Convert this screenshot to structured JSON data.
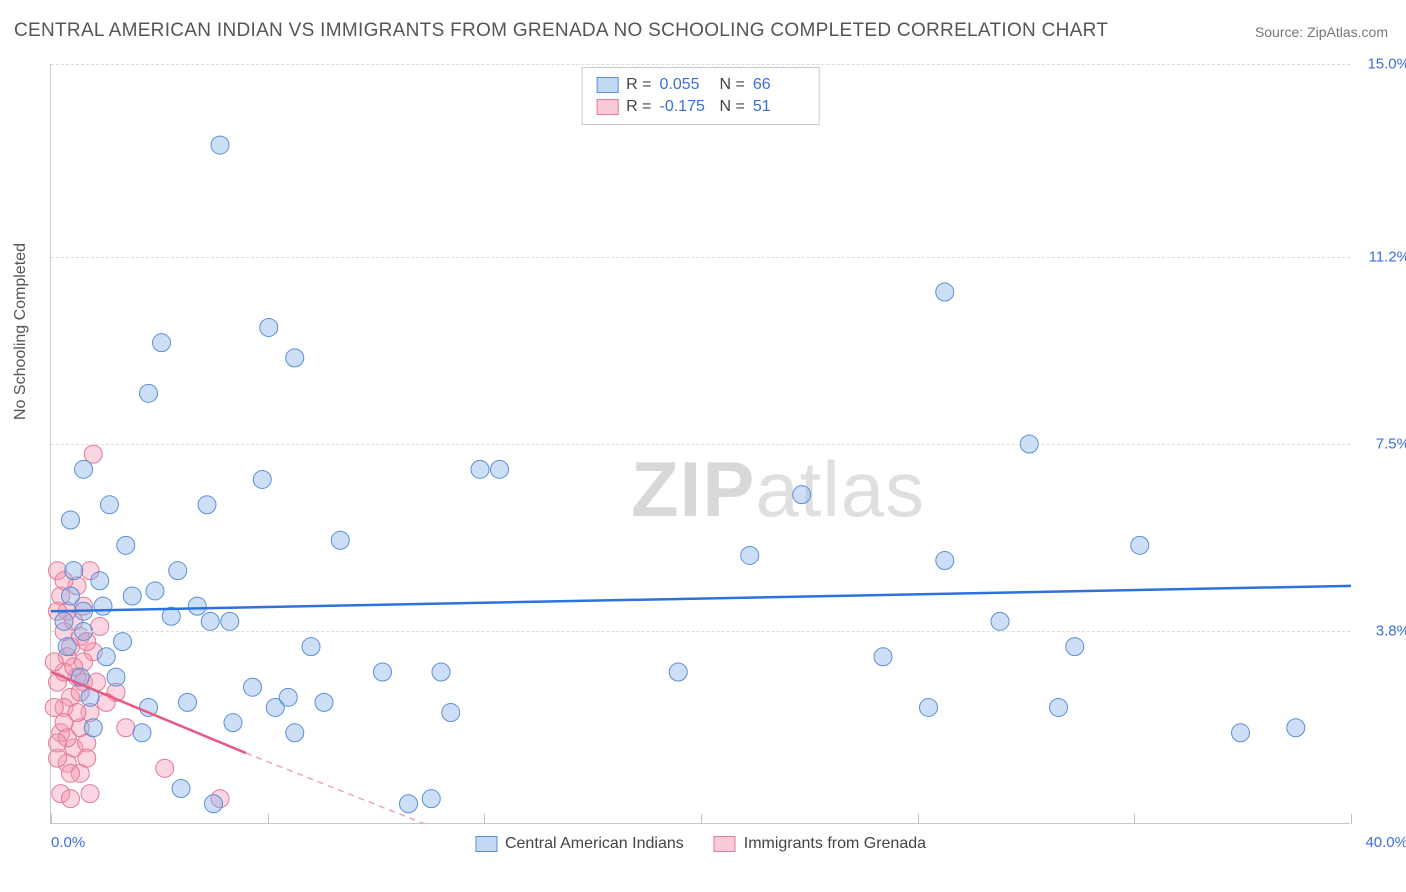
{
  "title": "CENTRAL AMERICAN INDIAN VS IMMIGRANTS FROM GRENADA NO SCHOOLING COMPLETED CORRELATION CHART",
  "source": "Source: ZipAtlas.com",
  "ylabel": "No Schooling Completed",
  "watermark_a": "ZIP",
  "watermark_b": "atlas",
  "chart": {
    "type": "scatter",
    "xlim": [
      0,
      40
    ],
    "ylim": [
      0,
      15
    ],
    "xtick_min_label": "0.0%",
    "xtick_max_label": "40.0%",
    "yticks": [
      {
        "v": 3.8,
        "label": "3.8%"
      },
      {
        "v": 7.5,
        "label": "7.5%"
      },
      {
        "v": 11.2,
        "label": "11.2%"
      },
      {
        "v": 15.0,
        "label": "15.0%"
      }
    ],
    "xgrid": [
      0,
      6.67,
      13.33,
      20,
      26.67,
      33.33,
      40
    ],
    "marker_radius": 9,
    "background_color": "#ffffff",
    "grid_color": "#dcdcdc",
    "axis_color": "#c9c9c9"
  },
  "series": {
    "blue": {
      "label": "Central American Indians",
      "R": "0.055",
      "N": "66",
      "fill": "rgba(130,175,235,0.40)",
      "stroke": "#5a8fd6",
      "trend_color": "#2d72d9",
      "trend": {
        "y_at_x0": 4.2,
        "y_at_xmax": 4.7
      },
      "points": [
        [
          5.2,
          13.4
        ],
        [
          27.5,
          10.5
        ],
        [
          30.1,
          7.5
        ],
        [
          13.2,
          7.0
        ],
        [
          23.1,
          6.5
        ],
        [
          6.7,
          9.8
        ],
        [
          3.4,
          9.5
        ],
        [
          6.5,
          6.8
        ],
        [
          7.5,
          9.2
        ],
        [
          4.8,
          6.3
        ],
        [
          2.3,
          5.5
        ],
        [
          3.9,
          5.0
        ],
        [
          1.0,
          4.2
        ],
        [
          0.6,
          4.5
        ],
        [
          2.5,
          4.5
        ],
        [
          3.7,
          4.1
        ],
        [
          4.9,
          4.0
        ],
        [
          29.2,
          4.0
        ],
        [
          31.5,
          3.5
        ],
        [
          33.5,
          5.5
        ],
        [
          36.6,
          1.8
        ],
        [
          38.3,
          1.9
        ],
        [
          31.0,
          2.3
        ],
        [
          27.0,
          2.3
        ],
        [
          27.5,
          5.2
        ],
        [
          25.6,
          3.3
        ],
        [
          21.5,
          5.3
        ],
        [
          19.3,
          3.0
        ],
        [
          6.2,
          2.7
        ],
        [
          6.9,
          2.3
        ],
        [
          5.6,
          2.0
        ],
        [
          5.0,
          0.4
        ],
        [
          7.5,
          1.8
        ],
        [
          7.3,
          2.5
        ],
        [
          8.4,
          2.4
        ],
        [
          12.3,
          2.2
        ],
        [
          11.7,
          0.5
        ],
        [
          12.0,
          3.0
        ],
        [
          10.2,
          3.0
        ],
        [
          8.9,
          5.6
        ],
        [
          1.0,
          3.8
        ],
        [
          1.7,
          3.3
        ],
        [
          1.2,
          2.5
        ],
        [
          2.0,
          2.9
        ],
        [
          2.8,
          1.8
        ],
        [
          4.2,
          2.4
        ],
        [
          0.7,
          5.0
        ],
        [
          1.5,
          4.8
        ],
        [
          0.5,
          3.5
        ],
        [
          0.9,
          2.9
        ],
        [
          1.3,
          1.9
        ],
        [
          3.0,
          2.3
        ],
        [
          4.5,
          4.3
        ],
        [
          5.5,
          4.0
        ],
        [
          13.8,
          7.0
        ],
        [
          3.0,
          8.5
        ],
        [
          1.8,
          6.3
        ],
        [
          0.6,
          6.0
        ],
        [
          1.0,
          7.0
        ],
        [
          11.0,
          0.4
        ],
        [
          8.0,
          3.5
        ],
        [
          4.0,
          0.7
        ],
        [
          3.2,
          4.6
        ],
        [
          2.2,
          3.6
        ],
        [
          1.6,
          4.3
        ],
        [
          0.4,
          4.0
        ]
      ]
    },
    "pink": {
      "label": "Immigrants from Grenada",
      "R": "-0.175",
      "N": "51",
      "fill": "rgba(245,150,175,0.40)",
      "stroke": "#e07a99",
      "trend_color": "#e85a85",
      "trend": {
        "y_at_x0": 3.0,
        "slope_to_x": 6.0,
        "y_at_limit": 1.4,
        "extend_to_zero_at_x": 11.5
      },
      "points": [
        [
          1.3,
          7.3
        ],
        [
          0.2,
          5.0
        ],
        [
          0.4,
          3.8
        ],
        [
          0.3,
          4.5
        ],
        [
          0.7,
          4.0
        ],
        [
          0.5,
          3.3
        ],
        [
          0.8,
          2.9
        ],
        [
          0.2,
          2.8
        ],
        [
          0.6,
          2.5
        ],
        [
          0.4,
          2.3
        ],
        [
          1.0,
          2.8
        ],
        [
          1.2,
          2.2
        ],
        [
          0.9,
          1.9
        ],
        [
          0.3,
          1.8
        ],
        [
          0.7,
          1.5
        ],
        [
          0.5,
          1.2
        ],
        [
          1.1,
          1.6
        ],
        [
          0.2,
          1.3
        ],
        [
          0.5,
          4.2
        ],
        [
          0.9,
          3.7
        ],
        [
          1.3,
          3.4
        ],
        [
          0.4,
          3.0
        ],
        [
          0.1,
          3.2
        ],
        [
          0.6,
          3.5
        ],
        [
          1.0,
          4.3
        ],
        [
          1.5,
          3.9
        ],
        [
          0.8,
          4.7
        ],
        [
          0.2,
          4.2
        ],
        [
          1.2,
          5.0
        ],
        [
          0.3,
          0.6
        ],
        [
          0.6,
          0.5
        ],
        [
          0.9,
          1.0
        ],
        [
          1.2,
          0.6
        ],
        [
          3.5,
          1.1
        ],
        [
          5.2,
          0.5
        ],
        [
          2.0,
          2.6
        ],
        [
          2.3,
          1.9
        ],
        [
          1.7,
          2.4
        ],
        [
          0.1,
          2.3
        ],
        [
          0.4,
          2.0
        ],
        [
          0.8,
          2.2
        ],
        [
          1.1,
          1.3
        ],
        [
          0.5,
          1.7
        ],
        [
          1.0,
          3.2
        ],
        [
          0.6,
          1.0
        ],
        [
          0.2,
          1.6
        ],
        [
          0.9,
          2.6
        ],
        [
          1.4,
          2.8
        ],
        [
          0.4,
          4.8
        ],
        [
          0.7,
          3.1
        ],
        [
          1.1,
          3.6
        ]
      ]
    }
  }
}
